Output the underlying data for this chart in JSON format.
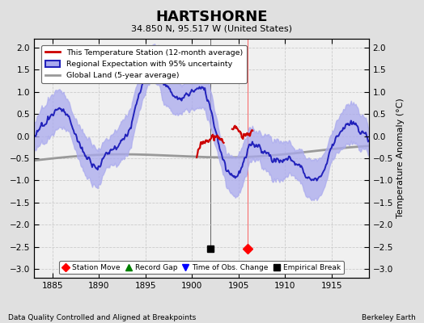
{
  "title": "HARTSHORNE",
  "subtitle": "34.850 N, 95.517 W (United States)",
  "xlabel_bottom": "Data Quality Controlled and Aligned at Breakpoints",
  "xlabel_right": "Berkeley Earth",
  "ylabel": "Temperature Anomaly (°C)",
  "xlim": [
    1883,
    1919
  ],
  "ylim": [
    -3.2,
    2.2
  ],
  "yticks": [
    -3,
    -2.5,
    -2,
    -1.5,
    -1,
    -0.5,
    0,
    0.5,
    1,
    1.5,
    2
  ],
  "xticks": [
    1885,
    1890,
    1895,
    1900,
    1905,
    1910,
    1915
  ],
  "bg_color": "#e0e0e0",
  "plot_bg_color": "#f0f0f0",
  "station_color": "#cc0000",
  "regional_color": "#2222bb",
  "regional_fill_color": "#aaaaee",
  "global_color": "#999999",
  "global_lw": 2.0,
  "station_lw": 1.6,
  "regional_lw": 1.4,
  "marker_station_move_year": 1906,
  "marker_station_move_val": -2.55,
  "marker_empirical_break_year": 1902,
  "marker_empirical_break_val": -2.55,
  "seed": 7
}
